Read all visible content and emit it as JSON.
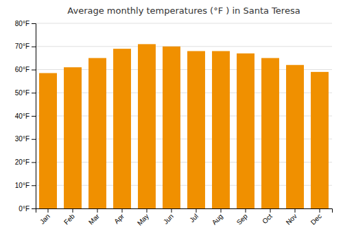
{
  "chart_data": {
    "type": "bar",
    "title": "Average monthly temperatures (°F ) in Santa Teresa",
    "categories": [
      "Jan",
      "Feb",
      "Mar",
      "Apr",
      "May",
      "Jun",
      "Jul",
      "Aug",
      "Sep",
      "Oct",
      "Nov",
      "Dec"
    ],
    "values": [
      58.5,
      61.0,
      65.0,
      69.0,
      71.0,
      70.0,
      68.0,
      68.0,
      67.0,
      65.0,
      62.0,
      59.0
    ],
    "color": "#F09000",
    "ylim": [
      0,
      80
    ],
    "yticks": [
      {
        "value": 0,
        "label": "0°F"
      },
      {
        "value": 10,
        "label": "10°F"
      },
      {
        "value": 20,
        "label": "20°F"
      },
      {
        "value": 30,
        "label": "30°F"
      },
      {
        "value": 40,
        "label": "40°F"
      },
      {
        "value": 50,
        "label": "50°F"
      },
      {
        "value": 60,
        "label": "60°F"
      },
      {
        "value": 70,
        "label": "70°F"
      },
      {
        "value": 80,
        "label": "80°F"
      }
    ],
    "grid": true
  }
}
